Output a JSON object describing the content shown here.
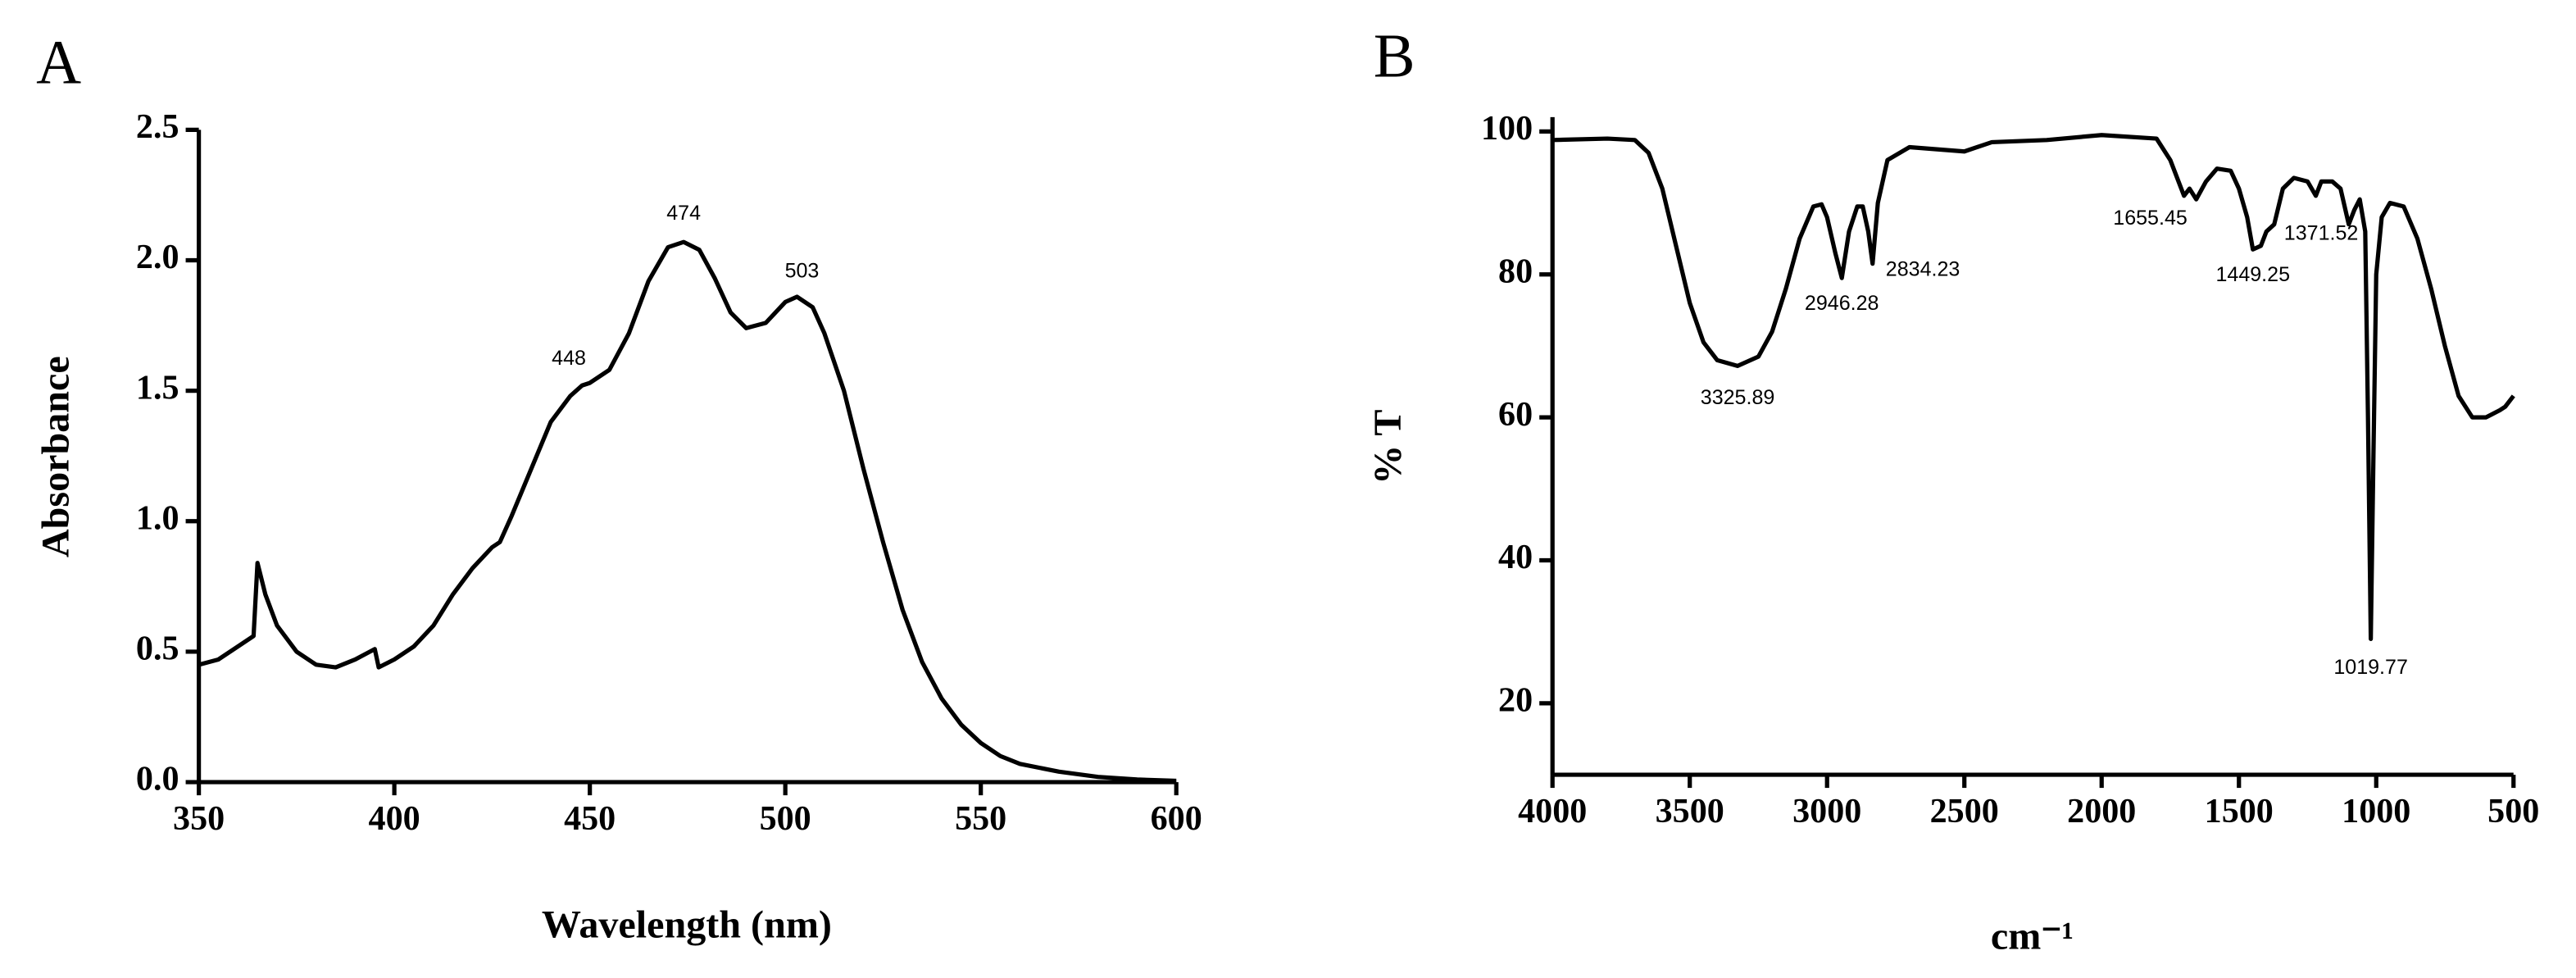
{
  "chart_data": [
    {
      "type": "line",
      "label": "A",
      "x_label": "Wavelength (nm)",
      "y_label": "Absorbance",
      "color": "#000000",
      "xlim": [
        350,
        600
      ],
      "xticks": [
        350,
        400,
        450,
        500,
        550,
        600
      ],
      "ylim": [
        0,
        2.5
      ],
      "yticks": [
        {
          "value": 0,
          "label": "0.0"
        },
        0.5,
        {
          "value": 1,
          "label": "1.0"
        },
        1.5,
        {
          "value": 2,
          "label": "2.0"
        },
        2.5
      ],
      "x": [
        350,
        355,
        360,
        364,
        365,
        367,
        370,
        375,
        380,
        385,
        390,
        395,
        396,
        400,
        405,
        410,
        415,
        420,
        425,
        427,
        430,
        435,
        440,
        445,
        448,
        450,
        455,
        460,
        465,
        470,
        474,
        478,
        482,
        486,
        490,
        495,
        500,
        503,
        507,
        510,
        515,
        520,
        525,
        530,
        535,
        540,
        545,
        550,
        555,
        560,
        570,
        580,
        590,
        600
      ],
      "values": [
        0.45,
        0.47,
        0.52,
        0.56,
        0.84,
        0.72,
        0.6,
        0.5,
        0.45,
        0.44,
        0.47,
        0.51,
        0.44,
        0.47,
        0.52,
        0.6,
        0.72,
        0.82,
        0.9,
        0.92,
        1.02,
        1.2,
        1.38,
        1.48,
        1.52,
        1.53,
        1.58,
        1.72,
        1.92,
        2.05,
        2.07,
        2.04,
        1.93,
        1.8,
        1.74,
        1.76,
        1.84,
        1.86,
        1.82,
        1.72,
        1.5,
        1.2,
        0.92,
        0.66,
        0.46,
        0.32,
        0.22,
        0.15,
        0.1,
        0.07,
        0.04,
        0.02,
        0.01,
        0.005
      ],
      "annotations": [
        {
          "label": "448",
          "x": 448,
          "y": 1.52
        },
        {
          "label": "474",
          "x": 474,
          "y": 2.07
        },
        {
          "label": "503",
          "x": 503,
          "y": 1.86
        }
      ]
    },
    {
      "type": "line",
      "label": "B",
      "x_label": "cm⁻¹",
      "y_label": "% T",
      "color": "#000000",
      "xlim": [
        4000,
        500
      ],
      "xticks": [
        4000,
        3500,
        3000,
        2500,
        2000,
        1500,
        1000,
        500
      ],
      "ylim": [
        10,
        102
      ],
      "yticks": [
        20,
        40,
        60,
        80,
        100
      ],
      "x": [
        4000,
        3800,
        3700,
        3650,
        3600,
        3550,
        3500,
        3450,
        3400,
        3325.89,
        3250,
        3200,
        3150,
        3100,
        3050,
        3020,
        3000,
        2970,
        2946.28,
        2920,
        2890,
        2870,
        2850,
        2834.23,
        2815,
        2780,
        2700,
        2600,
        2500,
        2400,
        2200,
        2000,
        1800,
        1750,
        1720,
        1700,
        1680,
        1655.45,
        1620,
        1580,
        1530,
        1500,
        1470,
        1449.25,
        1420,
        1400,
        1371.52,
        1340,
        1300,
        1250,
        1220,
        1200,
        1160,
        1130,
        1100,
        1080,
        1060,
        1040,
        1030,
        1019.77,
        1010,
        1000,
        980,
        950,
        900,
        850,
        800,
        750,
        700,
        650,
        600,
        550,
        530,
        500
      ],
      "values": [
        98.8,
        99,
        98.8,
        97,
        92,
        84,
        76,
        70.5,
        68,
        67.2,
        68.5,
        72,
        78,
        85,
        89.5,
        89.8,
        88,
        83,
        79.5,
        86,
        89.5,
        89.5,
        86,
        81.5,
        90,
        96,
        97.8,
        97.5,
        97.2,
        98.5,
        98.8,
        99.5,
        99,
        96,
        93,
        91,
        92,
        90.5,
        93,
        94.8,
        94.5,
        92,
        88,
        83.5,
        84,
        86,
        87,
        92,
        93.5,
        93,
        91,
        93,
        93,
        92,
        87,
        89,
        90.5,
        86,
        60,
        29,
        55,
        80,
        88,
        90,
        89.5,
        85,
        78,
        70,
        63,
        60,
        60,
        61,
        61.5,
        63
      ],
      "annotations": [
        {
          "label": "3325.89",
          "x": 3325.89,
          "y": 67.2
        },
        {
          "label": "2946.28",
          "x": 2946.28,
          "y": 79.5
        },
        {
          "label": "2834.23",
          "x": 2834.23,
          "y": 81.5
        },
        {
          "label": "1655.45",
          "x": 1655.45,
          "y": 90.5
        },
        {
          "label": "1449.25",
          "x": 1449.25,
          "y": 83.5
        },
        {
          "label": "1371.52",
          "x": 1371.52,
          "y": 87
        },
        {
          "label": "1019.77",
          "x": 1019.77,
          "y": 29
        }
      ]
    }
  ]
}
